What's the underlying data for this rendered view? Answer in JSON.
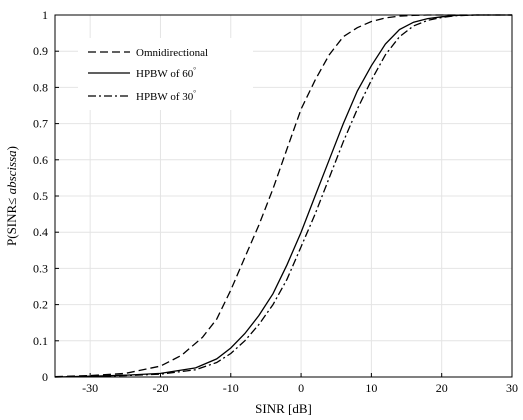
{
  "chart_data": {
    "type": "line",
    "title": "",
    "xlabel": "SINR [dB]",
    "ylabel": "P(SINR ≤ abscissa)",
    "ylabel_parts": {
      "prefix": "P(SINR",
      "symbol": "≤",
      "italic": " abscissa",
      "suffix": ")"
    },
    "xlim": [
      -35,
      30
    ],
    "ylim": [
      0,
      1
    ],
    "xticks": [
      -30,
      -20,
      -10,
      0,
      10,
      20,
      30
    ],
    "yticks": [
      0,
      0.1,
      0.2,
      0.3,
      0.4,
      0.5,
      0.6,
      0.7,
      0.8,
      0.9,
      1
    ],
    "ytick_labels": [
      "0",
      "0.1",
      "0.2",
      "0.3",
      "0.4",
      "0.5",
      "0.6",
      "0.7",
      "0.8",
      "0.9",
      "1"
    ],
    "grid": true,
    "legend_position": "top-left",
    "series": [
      {
        "name": "Omnidirectional",
        "dash": "dashed",
        "legend_parts": {
          "text": "Omnidirectional",
          "sup": ""
        },
        "x": [
          -35,
          -30,
          -25,
          -20,
          -17,
          -14,
          -12,
          -10,
          -8,
          -6,
          -4,
          -2,
          0,
          2,
          4,
          6,
          8,
          10,
          12,
          14,
          16,
          18,
          20,
          25,
          30
        ],
        "y": [
          0.001,
          0.004,
          0.01,
          0.03,
          0.06,
          0.11,
          0.16,
          0.24,
          0.33,
          0.42,
          0.52,
          0.63,
          0.74,
          0.82,
          0.89,
          0.94,
          0.965,
          0.982,
          0.992,
          0.997,
          0.999,
          1.0,
          1.0,
          1.0,
          1.0
        ]
      },
      {
        "name": "HPBW of 60°",
        "dash": "solid",
        "legend_parts": {
          "text": "HPBW of 60",
          "sup": "°"
        },
        "x": [
          -35,
          -30,
          -25,
          -20,
          -15,
          -12,
          -10,
          -8,
          -6,
          -4,
          -2,
          0,
          2,
          4,
          6,
          8,
          10,
          12,
          14,
          16,
          18,
          20,
          22,
          25,
          30
        ],
        "y": [
          0.0,
          0.002,
          0.005,
          0.01,
          0.025,
          0.05,
          0.08,
          0.12,
          0.17,
          0.23,
          0.31,
          0.4,
          0.5,
          0.6,
          0.7,
          0.79,
          0.86,
          0.92,
          0.96,
          0.98,
          0.99,
          0.995,
          0.999,
          1.0,
          1.0
        ]
      },
      {
        "name": "HPBW of 30°",
        "dash": "dashdot",
        "legend_parts": {
          "text": "HPBW of 30",
          "sup": "°"
        },
        "x": [
          -35,
          -30,
          -25,
          -20,
          -15,
          -12,
          -10,
          -8,
          -6,
          -4,
          -2,
          0,
          2,
          4,
          6,
          8,
          10,
          12,
          14,
          16,
          18,
          20,
          22,
          25,
          30
        ],
        "y": [
          0.0,
          0.002,
          0.004,
          0.008,
          0.02,
          0.04,
          0.065,
          0.1,
          0.145,
          0.2,
          0.27,
          0.36,
          0.45,
          0.55,
          0.65,
          0.74,
          0.82,
          0.89,
          0.94,
          0.97,
          0.985,
          0.993,
          0.998,
          1.0,
          1.0
        ]
      }
    ]
  }
}
